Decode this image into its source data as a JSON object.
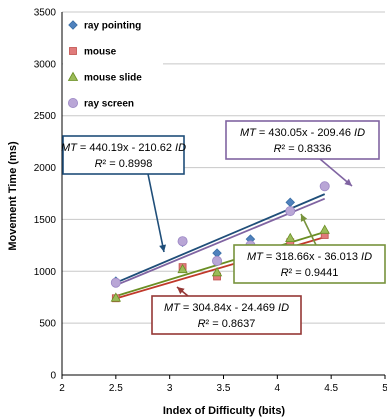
{
  "chart_data": {
    "type": "scatter",
    "xlabel": "Index of Difficulty (bits)",
    "ylabel": "Movement Time (ms)",
    "xlim": [
      2,
      5
    ],
    "ylim": [
      0,
      3500
    ],
    "xticks": [
      "2",
      "2.5",
      "3",
      "3.5",
      "4",
      "4.5",
      "5"
    ],
    "yticks": [
      "0",
      "500",
      "1000",
      "1500",
      "2000",
      "2500",
      "3000",
      "3500"
    ],
    "grid": "horizontal",
    "legend_position": "top-left",
    "series": [
      {
        "name": "ray pointing",
        "marker": "diamond",
        "color": "#4f81bd",
        "x": [
          2.5,
          3.12,
          3.44,
          3.75,
          4.12,
          4.44
        ],
        "y": [
          905,
          1280,
          1175,
          1310,
          1665,
          1820
        ],
        "fit": {
          "slope": 440.19,
          "intercept": -210.62,
          "x": [
            2.5,
            4.44
          ],
          "color": "#1f4e79"
        }
      },
      {
        "name": "mouse",
        "marker": "square",
        "color": "#e07b7b",
        "x": [
          2.5,
          3.12,
          3.44,
          3.75,
          4.12,
          4.44
        ],
        "y": [
          740,
          1040,
          950,
          1005,
          1280,
          1350
        ],
        "fit": {
          "slope": 304.84,
          "intercept": -24.469,
          "x": [
            2.5,
            4.44
          ],
          "color": "#c0392b"
        }
      },
      {
        "name": "mouse slide",
        "marker": "triangle",
        "color": "#9bbb59",
        "x": [
          2.5,
          3.12,
          3.44,
          3.75,
          4.12,
          4.44
        ],
        "y": [
          745,
          1020,
          990,
          1080,
          1320,
          1400
        ],
        "fit": {
          "slope": 318.66,
          "intercept": -36.013,
          "x": [
            2.5,
            4.44
          ],
          "color": "#6a8e23"
        }
      },
      {
        "name": "ray screen",
        "marker": "circle",
        "color": "#b9a6d6",
        "x": [
          2.5,
          3.12,
          3.44,
          3.75,
          4.12,
          4.44
        ],
        "y": [
          890,
          1290,
          1100,
          1250,
          1580,
          1820
        ],
        "fit": {
          "slope": 430.05,
          "intercept": -209.46,
          "x": [
            2.5,
            4.44
          ],
          "color": "#8064a2"
        }
      }
    ],
    "annotations": [
      {
        "mt": "MT",
        "eq": " = 440.19x - 210.62 ",
        "id": "ID",
        "r2label": "R",
        "r2": "² = 0.8998",
        "color": "#1f4e79"
      },
      {
        "mt": "MT",
        "eq": " = 430.05x - 209.46 ",
        "id": "ID",
        "r2label": "R",
        "r2": "² = 0.8336",
        "color": "#8064a2"
      },
      {
        "mt": "MT",
        "eq": " = 318.66x - 36.013 ",
        "id": "ID",
        "r2label": "R",
        "r2": "² = 0.9441",
        "color": "#77933c"
      },
      {
        "mt": "MT",
        "eq": " = 304.84x - 24.469 ",
        "id": "ID",
        "r2label": "R",
        "r2": "² = 0.8637",
        "color": "#953735"
      }
    ]
  }
}
